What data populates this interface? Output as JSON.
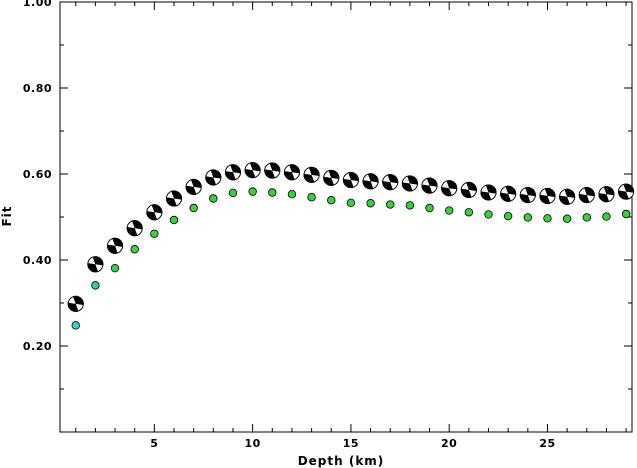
{
  "chart_data": {
    "type": "scatter",
    "title": "",
    "xlabel": "Depth (km)",
    "ylabel": "Fit",
    "xlim": [
      0.2,
      29.3
    ],
    "ylim": [
      0.0,
      1.0
    ],
    "x_major_ticks": [
      5,
      10,
      15,
      20,
      25
    ],
    "x_minor_step": 1,
    "y_major_ticks": [
      0.2,
      0.4,
      0.6,
      0.8,
      1.0
    ],
    "y_tick_labels": [
      "0.20",
      "0.40",
      "0.60",
      "0.80",
      "1.00"
    ],
    "y_minor_step": 0.1,
    "grid": false,
    "series": [
      {
        "marker": "mechanism-ball",
        "x": [
          1,
          2,
          3,
          4,
          5,
          6,
          7,
          8,
          9,
          10,
          11,
          12,
          13,
          14,
          15,
          16,
          17,
          18,
          19,
          20,
          21,
          22,
          23,
          24,
          25,
          26,
          27,
          28,
          29
        ],
        "y": [
          0.298,
          0.39,
          0.433,
          0.474,
          0.511,
          0.543,
          0.57,
          0.592,
          0.604,
          0.609,
          0.608,
          0.604,
          0.598,
          0.591,
          0.586,
          0.583,
          0.581,
          0.578,
          0.573,
          0.567,
          0.563,
          0.557,
          0.554,
          0.551,
          0.549,
          0.547,
          0.551,
          0.553,
          0.559
        ]
      },
      {
        "marker": "circle",
        "x": [
          1,
          2,
          3,
          4,
          5,
          6,
          7,
          8,
          9,
          10,
          11,
          12,
          13,
          14,
          15,
          16,
          17,
          18,
          19,
          20,
          21,
          22,
          23,
          24,
          25,
          26,
          27,
          28,
          29
        ],
        "y": [
          0.248,
          0.341,
          0.381,
          0.425,
          0.461,
          0.493,
          0.521,
          0.543,
          0.556,
          0.559,
          0.557,
          0.553,
          0.546,
          0.539,
          0.533,
          0.532,
          0.529,
          0.527,
          0.521,
          0.515,
          0.511,
          0.506,
          0.502,
          0.499,
          0.497,
          0.496,
          0.499,
          0.501,
          0.507
        ],
        "colors": [
          "#40d0c8",
          "#38d090",
          "#3cd05a",
          "#3cd048",
          "#3cd040",
          "#3cd03c",
          "#3cd03c",
          "#3cd03c",
          "#3cd03c",
          "#3cd03c",
          "#3cd03c",
          "#3cd03c",
          "#3cd03c",
          "#3cd03c",
          "#3cd03c",
          "#3cd03c",
          "#3cd03c",
          "#3cd03c",
          "#3cd03c",
          "#3cd03c",
          "#3cd03c",
          "#3cd03c",
          "#3cd03c",
          "#3cd03c",
          "#3cd03c",
          "#3cd03c",
          "#3cd03c",
          "#3cd03c",
          "#3cd03c"
        ]
      }
    ]
  }
}
